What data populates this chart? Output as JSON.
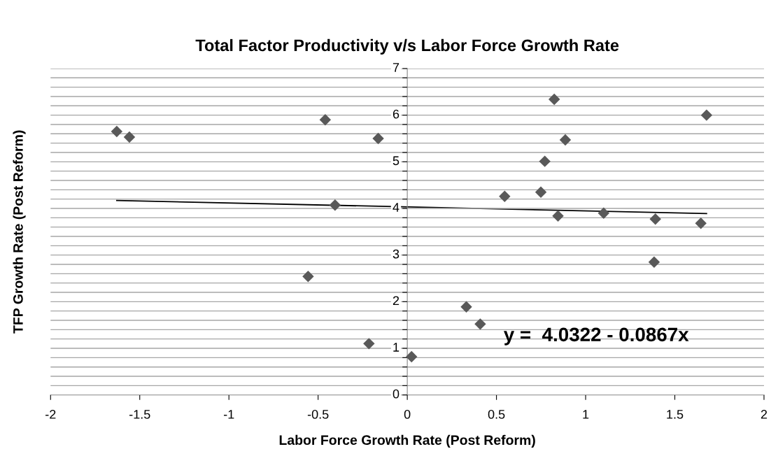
{
  "chart_data": {
    "type": "scatter",
    "title": "Total Factor Productivity v/s Labor Force Growth Rate",
    "xlabel": "Labor Force Growth Rate (Post Reform)",
    "ylabel": "TFP Growth Rate (Post Reform)",
    "series": [
      {
        "color": "#595959",
        "marker": "diamond",
        "x": [
          -1.629,
          -1.558,
          -0.46,
          -0.163,
          -0.405,
          -0.556,
          -0.215,
          0.024,
          0.824,
          1.678,
          0.886,
          0.771,
          0.546,
          0.749,
          0.845,
          1.101,
          1.391,
          1.646,
          1.384,
          0.331,
          0.409
        ],
        "values": [
          5.65,
          5.53,
          5.9,
          5.5,
          4.07,
          2.54,
          1.1,
          0.82,
          6.34,
          6.0,
          5.47,
          5.01,
          4.26,
          4.35,
          3.84,
          3.9,
          3.77,
          3.68,
          2.85,
          1.89,
          1.52
        ]
      },
      {
        "type": "line",
        "color": "#000000",
        "marker": "none",
        "x": [
          -1.629,
          1.678
        ],
        "values": [
          4.17,
          3.89
        ]
      }
    ],
    "annotations": [
      "y =  4.0322 - 0.0867x"
    ],
    "xlim": [
      -2,
      2
    ],
    "xticks": [
      -2,
      -1.5,
      -1,
      -0.5,
      0,
      0.5,
      1,
      1.5,
      2
    ],
    "ylim": [
      0,
      7
    ],
    "yticks": [
      0,
      {
        "value": 0.2,
        "label": null
      },
      {
        "value": 0.4,
        "label": null
      },
      {
        "value": 0.6,
        "label": null
      },
      {
        "value": 0.8,
        "label": null
      },
      1,
      {
        "value": 1.2,
        "label": null
      },
      {
        "value": 1.4,
        "label": null
      },
      {
        "value": 1.6,
        "label": null
      },
      {
        "value": 1.8,
        "label": null
      },
      2,
      {
        "value": 2.2,
        "label": null
      },
      {
        "value": 2.4,
        "label": null
      },
      {
        "value": 2.6,
        "label": null
      },
      {
        "value": 2.8,
        "label": null
      },
      3,
      {
        "value": 3.2,
        "label": null
      },
      {
        "value": 3.4,
        "label": null
      },
      {
        "value": 3.6,
        "label": null
      },
      {
        "value": 3.8,
        "label": null
      },
      4,
      {
        "value": 4.2,
        "label": null
      },
      {
        "value": 4.4,
        "label": null
      },
      {
        "value": 4.6,
        "label": null
      },
      {
        "value": 4.8,
        "label": null
      },
      5,
      {
        "value": 5.2,
        "label": null
      },
      {
        "value": 5.4,
        "label": null
      },
      {
        "value": 5.6,
        "label": null
      },
      {
        "value": 5.8,
        "label": null
      },
      6,
      {
        "value": 6.2,
        "label": null
      },
      {
        "value": 6.4,
        "label": null
      },
      {
        "value": 6.6,
        "label": null
      },
      {
        "value": 6.8,
        "label": null
      },
      7
    ],
    "grid": "y",
    "legend": false
  }
}
